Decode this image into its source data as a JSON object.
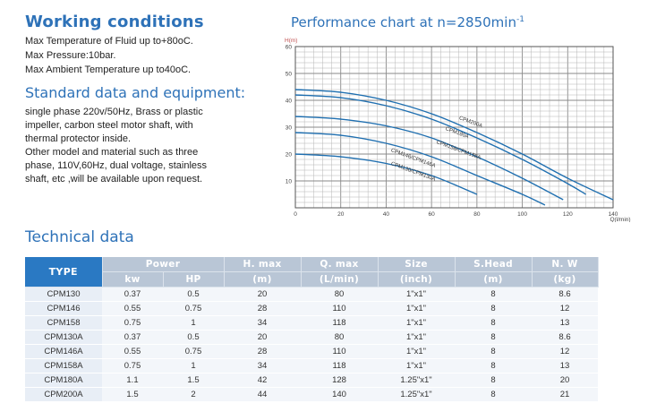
{
  "working": {
    "title": "Working conditions",
    "lines": [
      "Max Temperature of Fluid up to+80oC.",
      "Max Pressure:10bar.",
      "Max Ambient Temperature up to40oC."
    ]
  },
  "standard": {
    "title": "Standard data and equipment:",
    "lines": [
      "single phase 220v/50Hz, Brass or plastic",
      "impeller, carbon steel motor shaft, with",
      "thermal protector inside.",
      "Other model and material such as three",
      "phase, 110V,60Hz, dual voltage, stainless",
      "shaft, etc ,will be available upon request."
    ]
  },
  "performance": {
    "title": "Performance chart at n=2850min",
    "title_sup": "-1"
  },
  "technical": {
    "title": "Technical data",
    "headers": {
      "type": "TYPE",
      "power": "Power",
      "kw": "kw",
      "hp": "HP",
      "hmax": "H. max",
      "hmax_unit": "(m)",
      "qmax": "Q. max",
      "qmax_unit": "(L/min)",
      "size": "Size",
      "size_unit": "(inch)",
      "shead": "S.Head",
      "shead_unit": "(m)",
      "nw": "N. W",
      "nw_unit": "(kg)"
    },
    "rows": [
      [
        "CPM130",
        "0.37",
        "0.5",
        "20",
        "80",
        "1\"x1\"",
        "8",
        "8.6"
      ],
      [
        "CPM146",
        "0.55",
        "0.75",
        "28",
        "110",
        "1\"x1\"",
        "8",
        "12"
      ],
      [
        "CPM158",
        "0.75",
        "1",
        "34",
        "118",
        "1\"x1\"",
        "8",
        "13"
      ],
      [
        "CPM130A",
        "0.37",
        "0.5",
        "20",
        "80",
        "1\"x1\"",
        "8",
        "8.6"
      ],
      [
        "CPM146A",
        "0.55",
        "0.75",
        "28",
        "110",
        "1\"x1\"",
        "8",
        "12"
      ],
      [
        "CPM158A",
        "0.75",
        "1",
        "34",
        "118",
        "1\"x1\"",
        "8",
        "13"
      ],
      [
        "CPM180A",
        "1.1",
        "1.5",
        "42",
        "128",
        "1.25\"x1\"",
        "8",
        "20"
      ],
      [
        "CPM200A",
        "1.5",
        "2",
        "44",
        "140",
        "1.25\"x1\"",
        "8",
        "21"
      ]
    ]
  },
  "chart_data": {
    "type": "line",
    "title": "",
    "xlabel": "Q(l/min)",
    "ylabel": "H(m)",
    "xlim": [
      0,
      140
    ],
    "ylim": [
      0,
      60
    ],
    "x_ticks": [
      0,
      20,
      40,
      60,
      80,
      100,
      120,
      140
    ],
    "y_ticks": [
      10,
      20,
      30,
      40,
      50,
      60
    ],
    "grid": true,
    "line_color": "#1f6fb0",
    "series": [
      {
        "name": "CPM200A",
        "label_at": [
          72,
          33
        ],
        "points": [
          [
            0,
            44
          ],
          [
            20,
            43
          ],
          [
            40,
            40
          ],
          [
            60,
            35
          ],
          [
            80,
            28
          ],
          [
            100,
            20
          ],
          [
            120,
            11
          ],
          [
            140,
            3
          ]
        ]
      },
      {
        "name": "CPM180A",
        "label_at": [
          66,
          29
        ],
        "points": [
          [
            0,
            42
          ],
          [
            20,
            41
          ],
          [
            40,
            38
          ],
          [
            60,
            33
          ],
          [
            80,
            26
          ],
          [
            100,
            18
          ],
          [
            120,
            9
          ],
          [
            128,
            5
          ]
        ]
      },
      {
        "name": "CPM158/CPM158A",
        "label_at": [
          62,
          24
        ],
        "points": [
          [
            0,
            34
          ],
          [
            20,
            33
          ],
          [
            40,
            30.5
          ],
          [
            60,
            26
          ],
          [
            80,
            19
          ],
          [
            100,
            11
          ],
          [
            118,
            3
          ]
        ]
      },
      {
        "name": "CPM146/CPM146A",
        "label_at": [
          42,
          21
        ],
        "points": [
          [
            0,
            28
          ],
          [
            20,
            27
          ],
          [
            40,
            24
          ],
          [
            60,
            19
          ],
          [
            80,
            12
          ],
          [
            100,
            5
          ],
          [
            110,
            1
          ]
        ]
      },
      {
        "name": "CPM130/CPM130A",
        "label_at": [
          42,
          16
        ],
        "points": [
          [
            0,
            20
          ],
          [
            20,
            19
          ],
          [
            40,
            16.5
          ],
          [
            60,
            12
          ],
          [
            80,
            5
          ]
        ]
      }
    ]
  }
}
